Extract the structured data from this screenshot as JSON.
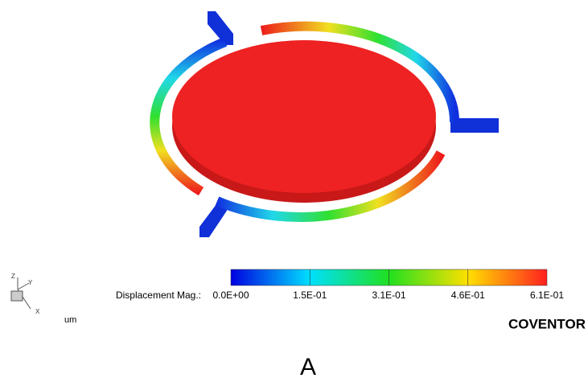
{
  "view": {
    "axes": {
      "z": "Z",
      "y": "Y",
      "x": "X"
    },
    "units": "um",
    "brand": "COVENTOR"
  },
  "colorbar": {
    "label": "Displacement Mag.:",
    "ticks": [
      "0.0E+00",
      "1.5E-01",
      "3.1E-01",
      "4.6E-01",
      "6.1E-01"
    ]
  },
  "caption": "A"
}
